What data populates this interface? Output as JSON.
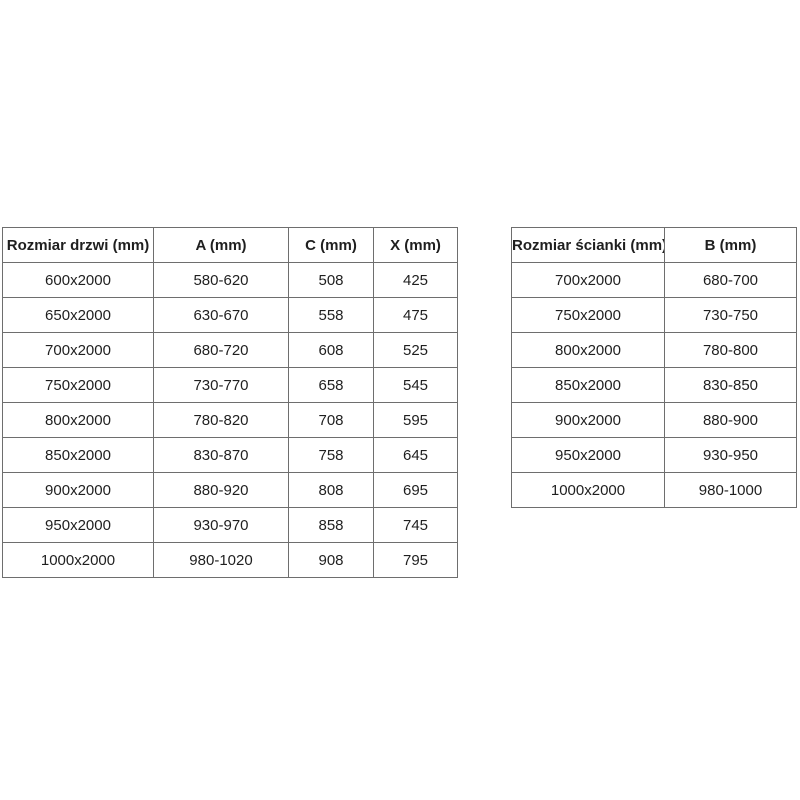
{
  "page": {
    "background": "#ffffff",
    "border_color": "#6e6e6e",
    "text_color": "#1f1f1f"
  },
  "tables": [
    {
      "name": "door-dimensions-table",
      "headers": [
        "Rozmiar drzwi (mm)",
        "A (mm)",
        "C (mm)",
        "X (mm)"
      ],
      "rows": [
        [
          "600x2000",
          "580-620",
          "508",
          "425"
        ],
        [
          "650x2000",
          "630-670",
          "558",
          "475"
        ],
        [
          "700x2000",
          "680-720",
          "608",
          "525"
        ],
        [
          "750x2000",
          "730-770",
          "658",
          "545"
        ],
        [
          "800x2000",
          "780-820",
          "708",
          "595"
        ],
        [
          "850x2000",
          "830-870",
          "758",
          "645"
        ],
        [
          "900x2000",
          "880-920",
          "808",
          "695"
        ],
        [
          "950x2000",
          "930-970",
          "858",
          "745"
        ],
        [
          "1000x2000",
          "980-1020",
          "908",
          "795"
        ]
      ]
    },
    {
      "name": "wall-dimensions-table",
      "headers": [
        "Rozmiar ścianki (mm)",
        "B (mm)"
      ],
      "rows": [
        [
          "700x2000",
          "680-700"
        ],
        [
          "750x2000",
          "730-750"
        ],
        [
          "800x2000",
          "780-800"
        ],
        [
          "850x2000",
          "830-850"
        ],
        [
          "900x2000",
          "880-900"
        ],
        [
          "950x2000",
          "930-950"
        ],
        [
          "1000x2000",
          "980-1000"
        ]
      ]
    }
  ]
}
